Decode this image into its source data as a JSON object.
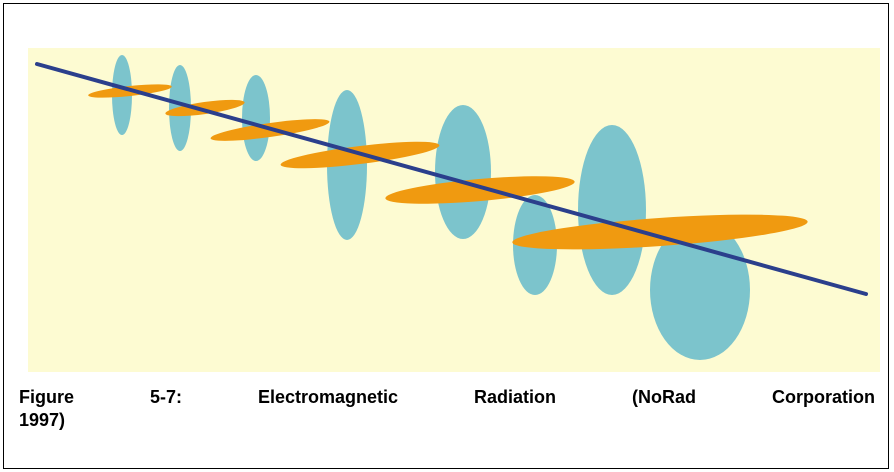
{
  "figure": {
    "label": "Figure 5-7:",
    "caption": "Electromagnetic Radiation (NoRad Corporation 1997)"
  }
}
